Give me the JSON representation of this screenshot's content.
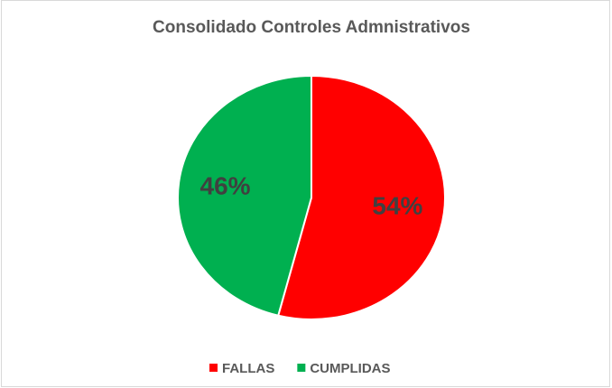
{
  "chart_data": {
    "type": "pie",
    "title": "Consolidado Controles Admnistrativos",
    "categories": [
      "FALLAS",
      "CUMPLIDAS"
    ],
    "values": [
      54,
      46
    ],
    "value_labels": [
      "54%",
      "46%"
    ],
    "colors": [
      "#ff0000",
      "#00b050"
    ],
    "legend": "bottom"
  }
}
